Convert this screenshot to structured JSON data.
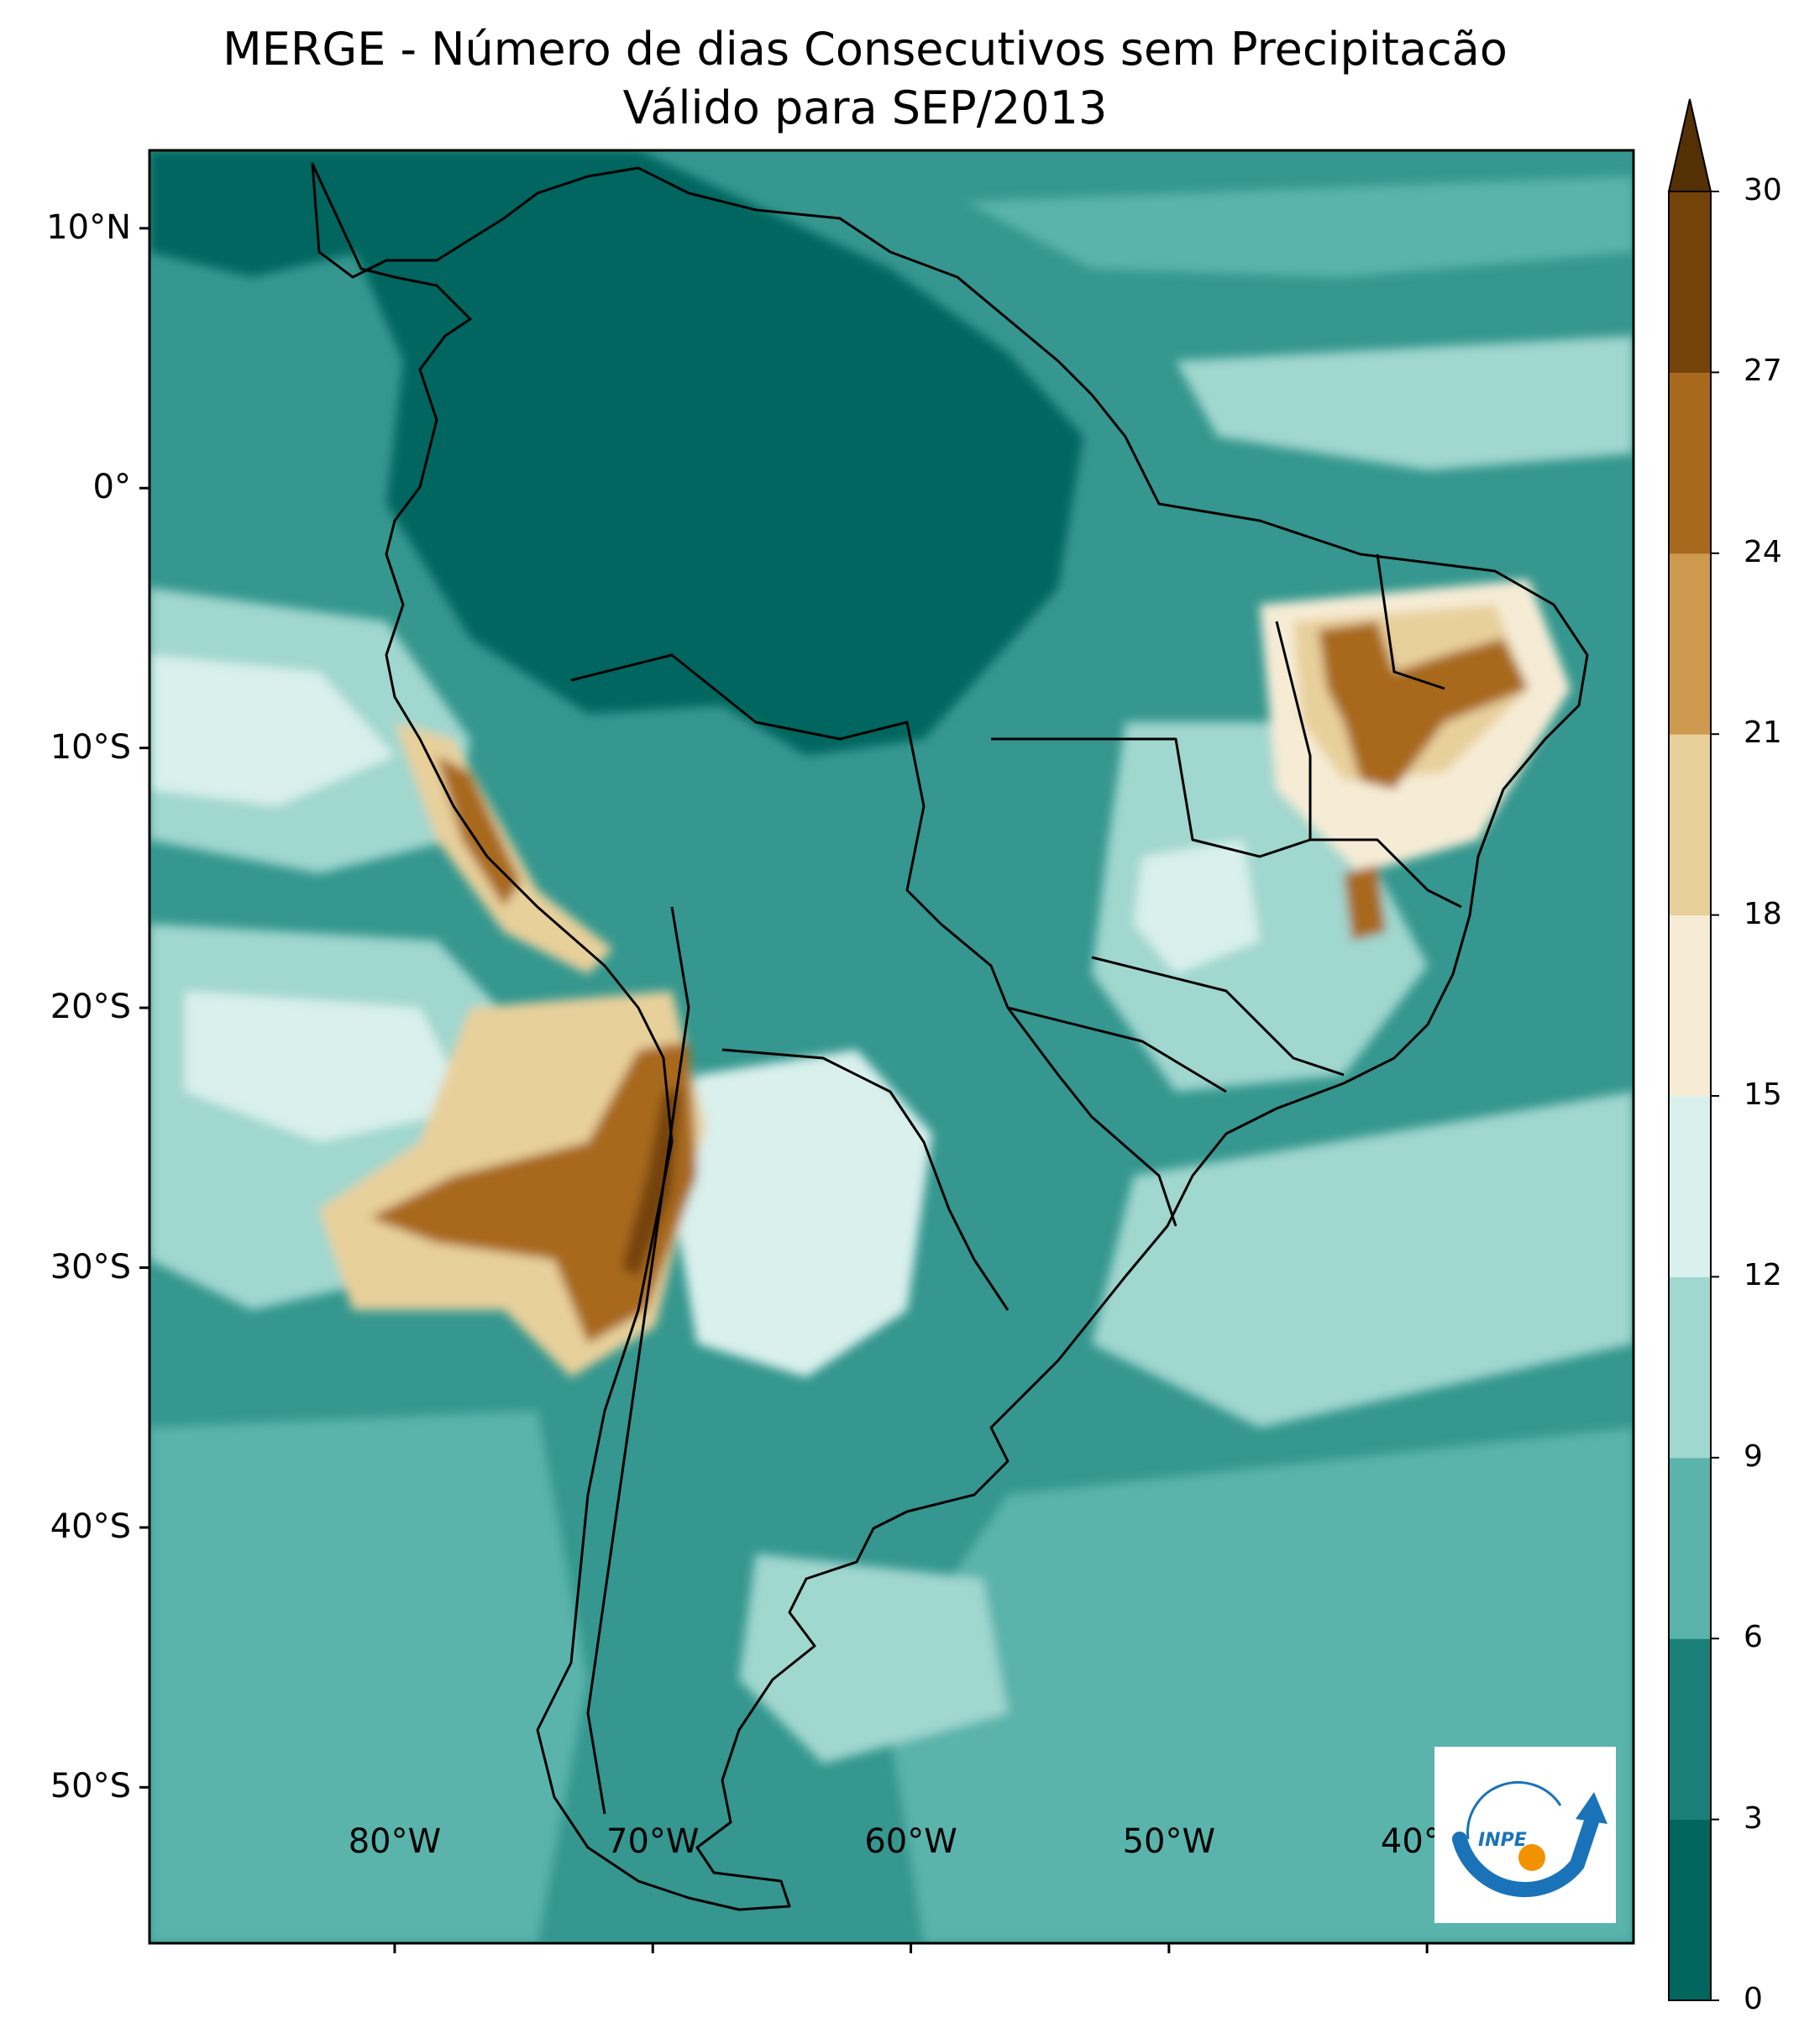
{
  "title": {
    "line1": "MERGE - Número de dias Consecutivos sem Precipitacão",
    "line2": "Válido para SEP/2013"
  },
  "map": {
    "lat_ticks": [
      {
        "value": 10,
        "label": "10°N"
      },
      {
        "value": 0,
        "label": "0°"
      },
      {
        "value": -10,
        "label": "10°S"
      },
      {
        "value": -20,
        "label": "20°S"
      },
      {
        "value": -30,
        "label": "30°S"
      },
      {
        "value": -40,
        "label": "40°S"
      },
      {
        "value": -50,
        "label": "50°S"
      }
    ],
    "lon_ticks": [
      {
        "value": -80,
        "label": "80°W"
      },
      {
        "value": -70,
        "label": "70°W"
      },
      {
        "value": -60,
        "label": "60°W"
      },
      {
        "value": -50,
        "label": "50°W"
      },
      {
        "value": -40,
        "label": "40°W"
      }
    ],
    "lat_range": [
      -56,
      13
    ],
    "lon_range": [
      -89.5,
      -32
    ],
    "ocean_base_color": "#35978f"
  },
  "colorbar": {
    "levels": [
      0,
      3,
      6,
      9,
      12,
      15,
      18,
      21,
      24,
      27,
      30
    ],
    "colors": [
      "#01665e",
      "#1a7f76",
      "#5ab4ac",
      "#a0d7cf",
      "#d9f0ed",
      "#f6ecd6",
      "#e8d09b",
      "#cd9a4f",
      "#a8691f",
      "#744309"
    ],
    "extend_color": "#543005",
    "extend": "max"
  },
  "logo": {
    "text": "INPE",
    "arc_color": "#1a73b8",
    "dot_color": "#f39200"
  }
}
